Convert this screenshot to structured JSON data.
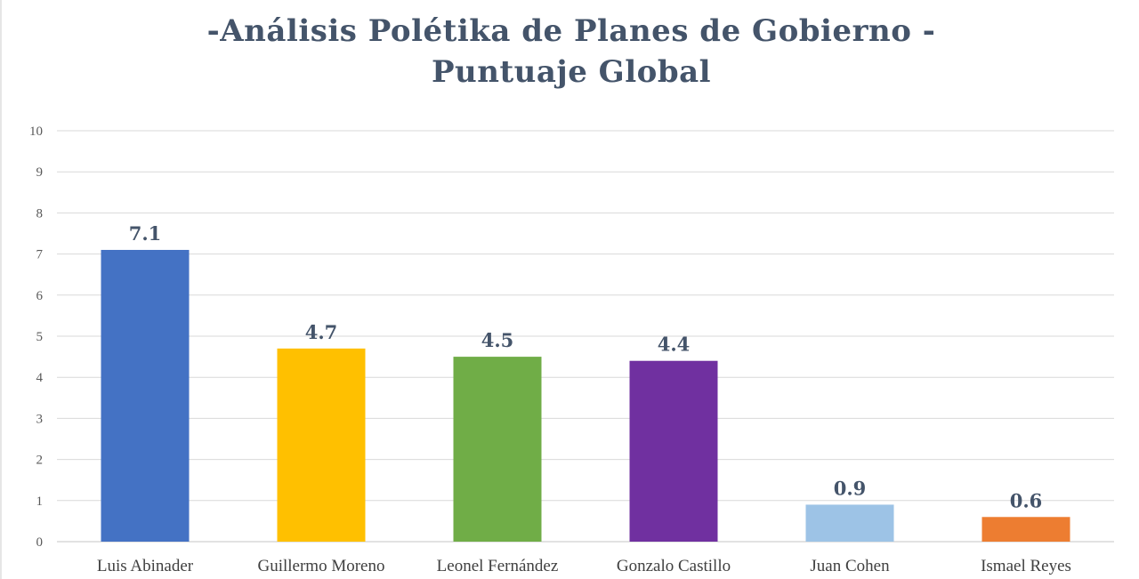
{
  "chart_data": {
    "type": "bar",
    "title": [
      "-Análisis Polétika de Planes de Gobierno -",
      "Puntuaje Global"
    ],
    "xlabel": "",
    "ylabel": "",
    "ylim": [
      0,
      10
    ],
    "yticks": [
      "0",
      "1",
      "2",
      "3",
      "4",
      "5",
      "6",
      "7",
      "8",
      "9",
      "10"
    ],
    "grid": true,
    "legend": "none",
    "categories": [
      "Luis Abinader",
      "Guillermo Moreno",
      "Leonel Fernández",
      "Gonzalo Castillo",
      "Juan Cohen",
      "Ismael Reyes"
    ],
    "values": [
      7.1,
      4.7,
      4.5,
      4.4,
      0.9,
      0.6
    ],
    "value_labels": [
      "7.1",
      "4.7",
      "4.5",
      "4.4",
      "0.9",
      "0.6"
    ],
    "colors": [
      "#4472c4",
      "#ffc000",
      "#70ad47",
      "#7030a0",
      "#9dc3e6",
      "#ed7d31"
    ]
  },
  "colors": {
    "title": "#44546a",
    "grid": "#d9d9d9",
    "axis": "#d9d9d9"
  }
}
